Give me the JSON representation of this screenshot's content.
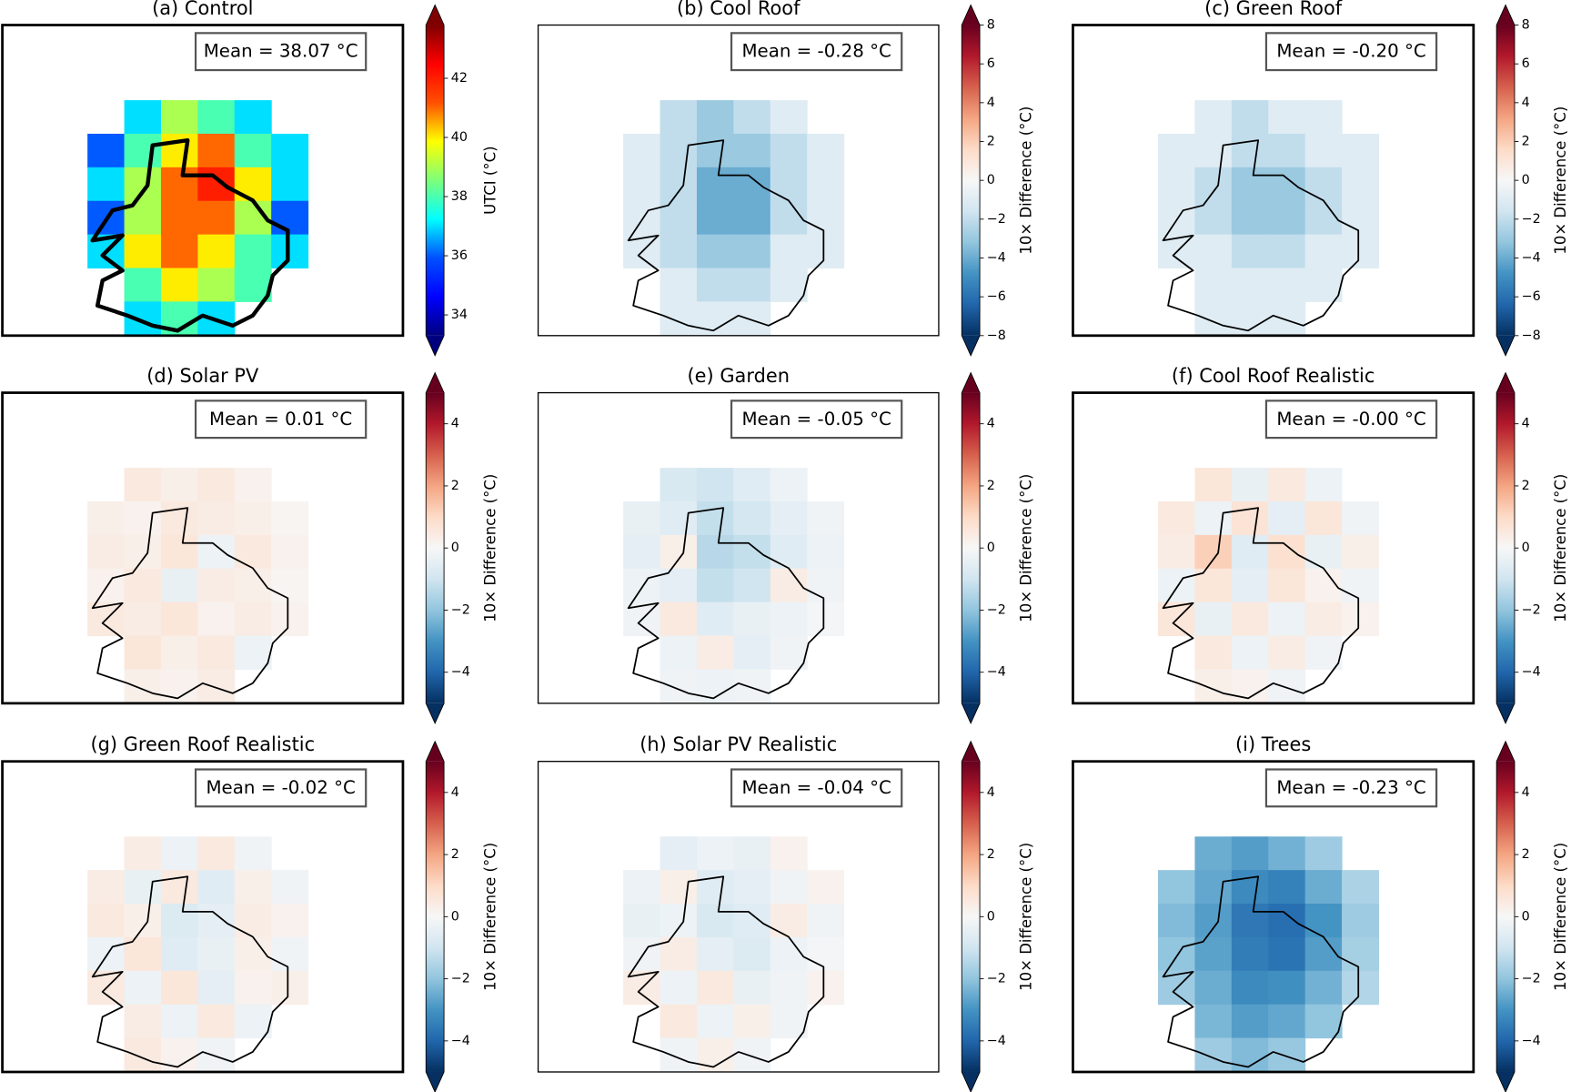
{
  "chart_data": [
    {
      "type": "heatmap",
      "title": "(a) Control",
      "annotation": "Mean = 38.07 °C",
      "colorbar_label": "UTCI (°C)",
      "cmap": "jet",
      "clim": [
        33.3,
        43.8
      ],
      "cticks": [
        34,
        36,
        38,
        40,
        42
      ],
      "grid": [
        [
          null,
          37,
          39,
          38,
          37,
          null
        ],
        [
          36,
          38,
          40,
          41,
          38,
          37
        ],
        [
          37,
          39,
          41,
          42,
          40,
          37
        ],
        [
          36,
          39,
          41,
          41,
          39,
          36
        ],
        [
          37,
          40,
          41,
          40,
          38,
          37
        ],
        [
          null,
          38,
          40,
          39,
          38,
          null
        ],
        [
          null,
          37,
          38,
          37,
          null,
          null
        ]
      ]
    },
    {
      "type": "heatmap",
      "title": "(b) Cool Roof",
      "annotation": "Mean = -0.28 °C",
      "colorbar_label": "10× Difference (°C)",
      "cmap": "RdBu_r",
      "clim": [
        -8,
        8
      ],
      "cticks": [
        {
          "value": -8,
          "label": "−8"
        },
        {
          "value": -6,
          "label": "−6"
        },
        {
          "value": -4,
          "label": "−4"
        },
        {
          "value": -2,
          "label": "−2"
        },
        0,
        2,
        4,
        6,
        8
      ],
      "grid": [
        [
          null,
          -2,
          -3,
          -2,
          -1,
          null
        ],
        [
          -1,
          -2,
          -3,
          -3,
          -2,
          -1
        ],
        [
          -1,
          -2,
          -4,
          -4,
          -2,
          -1
        ],
        [
          -1,
          -2,
          -4,
          -4,
          -2,
          -1
        ],
        [
          -1,
          -2,
          -3,
          -3,
          -1,
          -1
        ],
        [
          null,
          -1,
          -2,
          -2,
          -1,
          null
        ],
        [
          null,
          -1,
          -1,
          -1,
          null,
          null
        ]
      ]
    },
    {
      "type": "heatmap",
      "title": "(c) Green Roof",
      "annotation": "Mean = -0.20 °C",
      "colorbar_label": "10× Difference (°C)",
      "cmap": "RdBu_r",
      "clim": [
        -8,
        8
      ],
      "cticks": [
        {
          "value": -8,
          "label": "−8"
        },
        {
          "value": -6,
          "label": "−6"
        },
        {
          "value": -4,
          "label": "−4"
        },
        {
          "value": -2,
          "label": "−2"
        },
        0,
        2,
        4,
        6,
        8
      ],
      "grid": [
        [
          null,
          -1,
          -2,
          -1,
          -1,
          null
        ],
        [
          -1,
          -1,
          -2,
          -2,
          -1,
          -1
        ],
        [
          -1,
          -2,
          -3,
          -3,
          -2,
          -1
        ],
        [
          -1,
          -2,
          -3,
          -3,
          -2,
          -1
        ],
        [
          -1,
          -1,
          -2,
          -2,
          -1,
          -1
        ],
        [
          null,
          -1,
          -1,
          -1,
          -1,
          null
        ],
        [
          null,
          -1,
          -1,
          -1,
          null,
          null
        ]
      ]
    },
    {
      "type": "heatmap",
      "title": "(d) Solar PV",
      "annotation": "Mean = 0.01 °C",
      "colorbar_label": "10× Difference (°C)",
      "cmap": "RdBu_r",
      "clim": [
        -5,
        5
      ],
      "cticks": [
        {
          "value": -4,
          "label": "−4"
        },
        {
          "value": -2,
          "label": "−2"
        },
        0,
        2,
        4
      ],
      "grid": [
        [
          null,
          0.5,
          0.3,
          0.5,
          0.2,
          null
        ],
        [
          0.3,
          0.2,
          0.5,
          0.4,
          0.3,
          0.1
        ],
        [
          0.4,
          0.3,
          0.6,
          -0.3,
          0.5,
          0.2
        ],
        [
          0.2,
          0.5,
          -0.4,
          0.4,
          0.3,
          0.1
        ],
        [
          0.5,
          0.4,
          0.6,
          0.2,
          0.4,
          0.2
        ],
        [
          null,
          0.6,
          0.3,
          0.5,
          -0.3,
          null
        ],
        [
          null,
          0.3,
          0.2,
          0.4,
          null,
          null
        ]
      ]
    },
    {
      "type": "heatmap",
      "title": "(e) Garden",
      "annotation": "Mean = -0.05 °C",
      "colorbar_label": "10× Difference (°C)",
      "cmap": "RdBu_r",
      "clim": [
        -5,
        5
      ],
      "cticks": [
        {
          "value": -4,
          "label": "−4"
        },
        {
          "value": -2,
          "label": "−2"
        },
        0,
        2,
        4
      ],
      "grid": [
        [
          null,
          -0.8,
          -1,
          -0.6,
          -0.3,
          null
        ],
        [
          -0.4,
          -0.6,
          -1.2,
          -0.9,
          -0.5,
          -0.2
        ],
        [
          -0.5,
          0.3,
          -1.4,
          -1.2,
          -0.6,
          -0.3
        ],
        [
          -0.3,
          -0.5,
          -1.2,
          -1,
          0.4,
          -0.2
        ],
        [
          -0.2,
          0.5,
          -0.6,
          -0.4,
          -0.3,
          -0.1
        ],
        [
          null,
          -0.3,
          0.4,
          -0.5,
          -0.2,
          null
        ],
        [
          null,
          -0.2,
          -0.3,
          -0.2,
          null,
          null
        ]
      ]
    },
    {
      "type": "heatmap",
      "title": "(f) Cool Roof Realistic",
      "annotation": "Mean = -0.00 °C",
      "colorbar_label": "10× Difference (°C)",
      "cmap": "RdBu_r",
      "clim": [
        -5,
        5
      ],
      "cticks": [
        {
          "value": -4,
          "label": "−4"
        },
        {
          "value": -2,
          "label": "−2"
        },
        0,
        2,
        4
      ],
      "grid": [
        [
          null,
          0.6,
          -0.4,
          0.5,
          -0.3,
          null
        ],
        [
          0.5,
          -0.3,
          0.7,
          -0.5,
          0.6,
          -0.2
        ],
        [
          0.4,
          1.2,
          -0.6,
          0.8,
          -0.4,
          0.3
        ],
        [
          -0.3,
          0.6,
          -0.5,
          0.6,
          0.2,
          -0.2
        ],
        [
          0.6,
          -0.4,
          0.5,
          -0.3,
          0.4,
          0.2
        ],
        [
          null,
          0.5,
          -0.3,
          0.4,
          -0.2,
          null
        ],
        [
          null,
          0.3,
          0.2,
          -0.2,
          null,
          null
        ]
      ]
    },
    {
      "type": "heatmap",
      "title": "(g) Green Roof Realistic",
      "annotation": "Mean = -0.02 °C",
      "colorbar_label": "10× Difference (°C)",
      "cmap": "RdBu_r",
      "clim": [
        -5,
        5
      ],
      "cticks": [
        {
          "value": -4,
          "label": "−4"
        },
        {
          "value": -2,
          "label": "−2"
        },
        0,
        2,
        4
      ],
      "grid": [
        [
          null,
          0.4,
          -0.3,
          0.5,
          -0.2,
          null
        ],
        [
          0.4,
          -0.4,
          0.5,
          -0.6,
          0.3,
          -0.2
        ],
        [
          0.5,
          0.3,
          -0.7,
          -0.5,
          0.4,
          0.2
        ],
        [
          -0.3,
          0.6,
          -0.6,
          -0.4,
          0.3,
          -0.2
        ],
        [
          0.5,
          -0.3,
          0.6,
          -0.5,
          0.2,
          0.3
        ],
        [
          null,
          0.4,
          -0.3,
          0.5,
          -0.3,
          null
        ],
        [
          null,
          0.5,
          0.2,
          -0.2,
          null,
          null
        ]
      ]
    },
    {
      "type": "heatmap",
      "title": "(h) Solar PV Realistic",
      "annotation": "Mean = -0.04 °C",
      "colorbar_label": "10× Difference (°C)",
      "cmap": "RdBu_r",
      "clim": [
        -5,
        5
      ],
      "cticks": [
        {
          "value": -4,
          "label": "−4"
        },
        {
          "value": -2,
          "label": "−2"
        },
        0,
        2,
        4
      ],
      "grid": [
        [
          null,
          -0.5,
          -0.3,
          -0.4,
          0.2,
          null
        ],
        [
          -0.3,
          0.3,
          -0.6,
          -0.5,
          -0.2,
          0.2
        ],
        [
          -0.4,
          -0.3,
          -0.8,
          -0.6,
          0.4,
          -0.2
        ],
        [
          -0.2,
          0.4,
          -0.5,
          -0.7,
          -0.3,
          -0.1
        ],
        [
          0.4,
          -0.3,
          0.5,
          -0.4,
          -0.2,
          0.2
        ],
        [
          null,
          0.5,
          -0.3,
          0.3,
          -0.2,
          null
        ],
        [
          null,
          -0.2,
          0.3,
          -0.2,
          null,
          null
        ]
      ]
    },
    {
      "type": "heatmap",
      "title": "(i) Trees",
      "annotation": "Mean = -0.23 °C",
      "colorbar_label": "10× Difference (°C)",
      "cmap": "RdBu_r",
      "clim": [
        -5,
        5
      ],
      "cticks": [
        {
          "value": -4,
          "label": "−4"
        },
        {
          "value": -2,
          "label": "−2"
        },
        0,
        2,
        4
      ],
      "grid": [
        [
          null,
          -2.5,
          -2.8,
          -2.4,
          -1.8,
          null
        ],
        [
          -2,
          -2.6,
          -3.2,
          -3.4,
          -2.5,
          -1.6
        ],
        [
          -2.2,
          -2.8,
          -3.6,
          -3.8,
          -3,
          -1.8
        ],
        [
          -2,
          -2.7,
          -3.5,
          -3.7,
          -2.8,
          -1.7
        ],
        [
          -1.8,
          -2.5,
          -3.2,
          -3.1,
          -2.4,
          -1.5
        ],
        [
          null,
          -2.3,
          -2.8,
          -2.6,
          -2,
          null
        ],
        [
          null,
          -1.8,
          -2.2,
          -1.9,
          null,
          null
        ]
      ]
    }
  ]
}
